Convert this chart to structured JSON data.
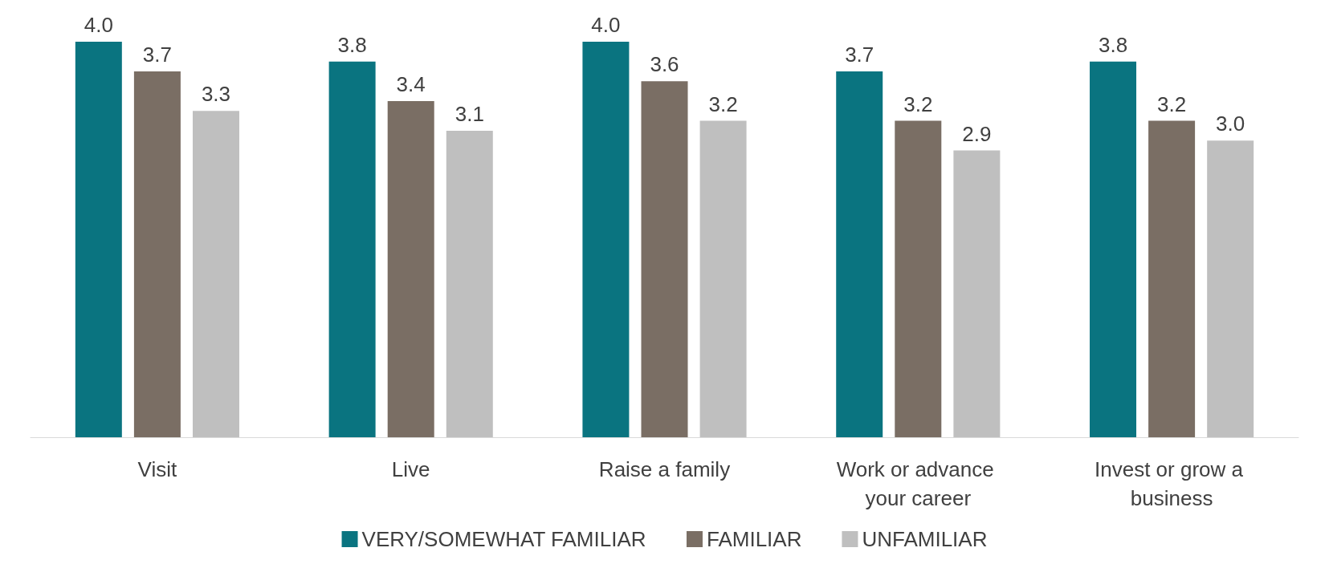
{
  "chart_data": {
    "type": "bar",
    "categories": [
      "Visit",
      "Live",
      "Raise a family",
      "Work or advance your career",
      "Invest or grow a business"
    ],
    "series": [
      {
        "name": "VERY/SOMEWHAT FAMILIAR",
        "color": "#0a7480",
        "values": [
          4.0,
          3.8,
          4.0,
          3.7,
          3.8
        ],
        "value_labels": [
          "4.0",
          "3.8",
          "4.0",
          "3.7",
          "3.8"
        ]
      },
      {
        "name": "FAMILIAR",
        "color": "#7a6e64",
        "values": [
          3.7,
          3.4,
          3.6,
          3.2,
          3.2
        ],
        "value_labels": [
          "3.7",
          "3.4",
          "3.6",
          "3.2",
          "3.2"
        ]
      },
      {
        "name": "UNFAMILIAR",
        "color": "#bfbfbf",
        "values": [
          3.3,
          3.1,
          3.2,
          2.9,
          3.0
        ],
        "value_labels": [
          "3.3",
          "3.1",
          "3.2",
          "2.9",
          "3.0"
        ]
      }
    ],
    "grid": false,
    "legend": "bottom"
  }
}
